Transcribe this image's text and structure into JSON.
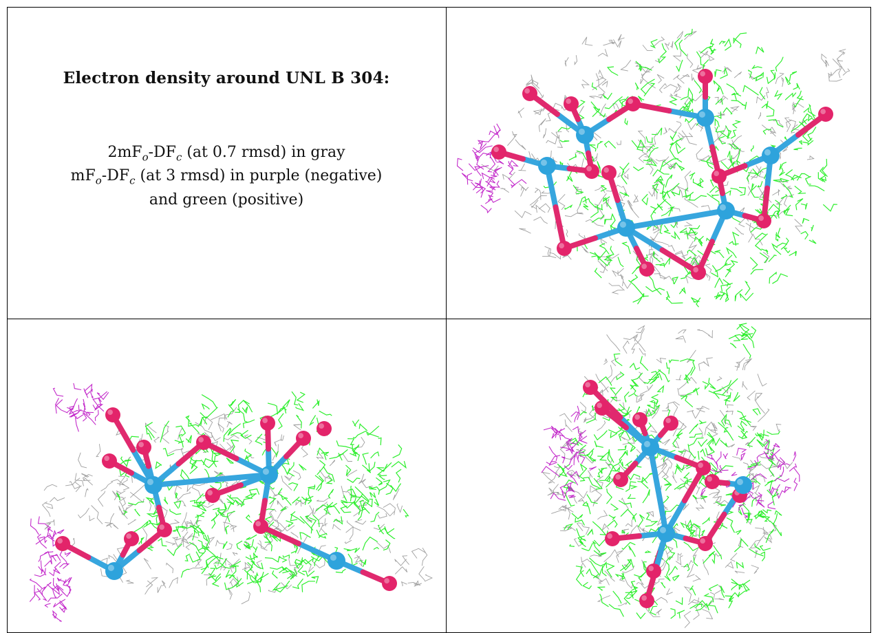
{
  "caption": {
    "title": "Electron density around UNL B 304:",
    "line1": {
      "prefix": "2mF",
      "sub1": "o",
      "mid": "-DF",
      "sub2": "c",
      "suffix": " (at 0.7 rmsd) in gray"
    },
    "line2": {
      "prefix": "mF",
      "sub1": "o",
      "mid": "-DF",
      "sub2": "c",
      "suffix": " (at 3 rmsd) in purple (negative)"
    },
    "line3": "and green (positive)"
  },
  "colors": {
    "gray_mesh": "#9a9a9a",
    "green_mesh": "#22ee22",
    "purple_mesh": "#c020c8",
    "oxygen": "#e3246a",
    "metal": "#2ea3dc",
    "bond_pink": "#e0296e",
    "bond_blue": "#37a6de",
    "grid_line": "#000000"
  },
  "panels": [
    {
      "name": "view-top-right",
      "legend": "2mFo-DFc gray, mFo-DFc purple/green"
    },
    {
      "name": "view-bottom-left"
    },
    {
      "name": "view-bottom-right"
    }
  ]
}
